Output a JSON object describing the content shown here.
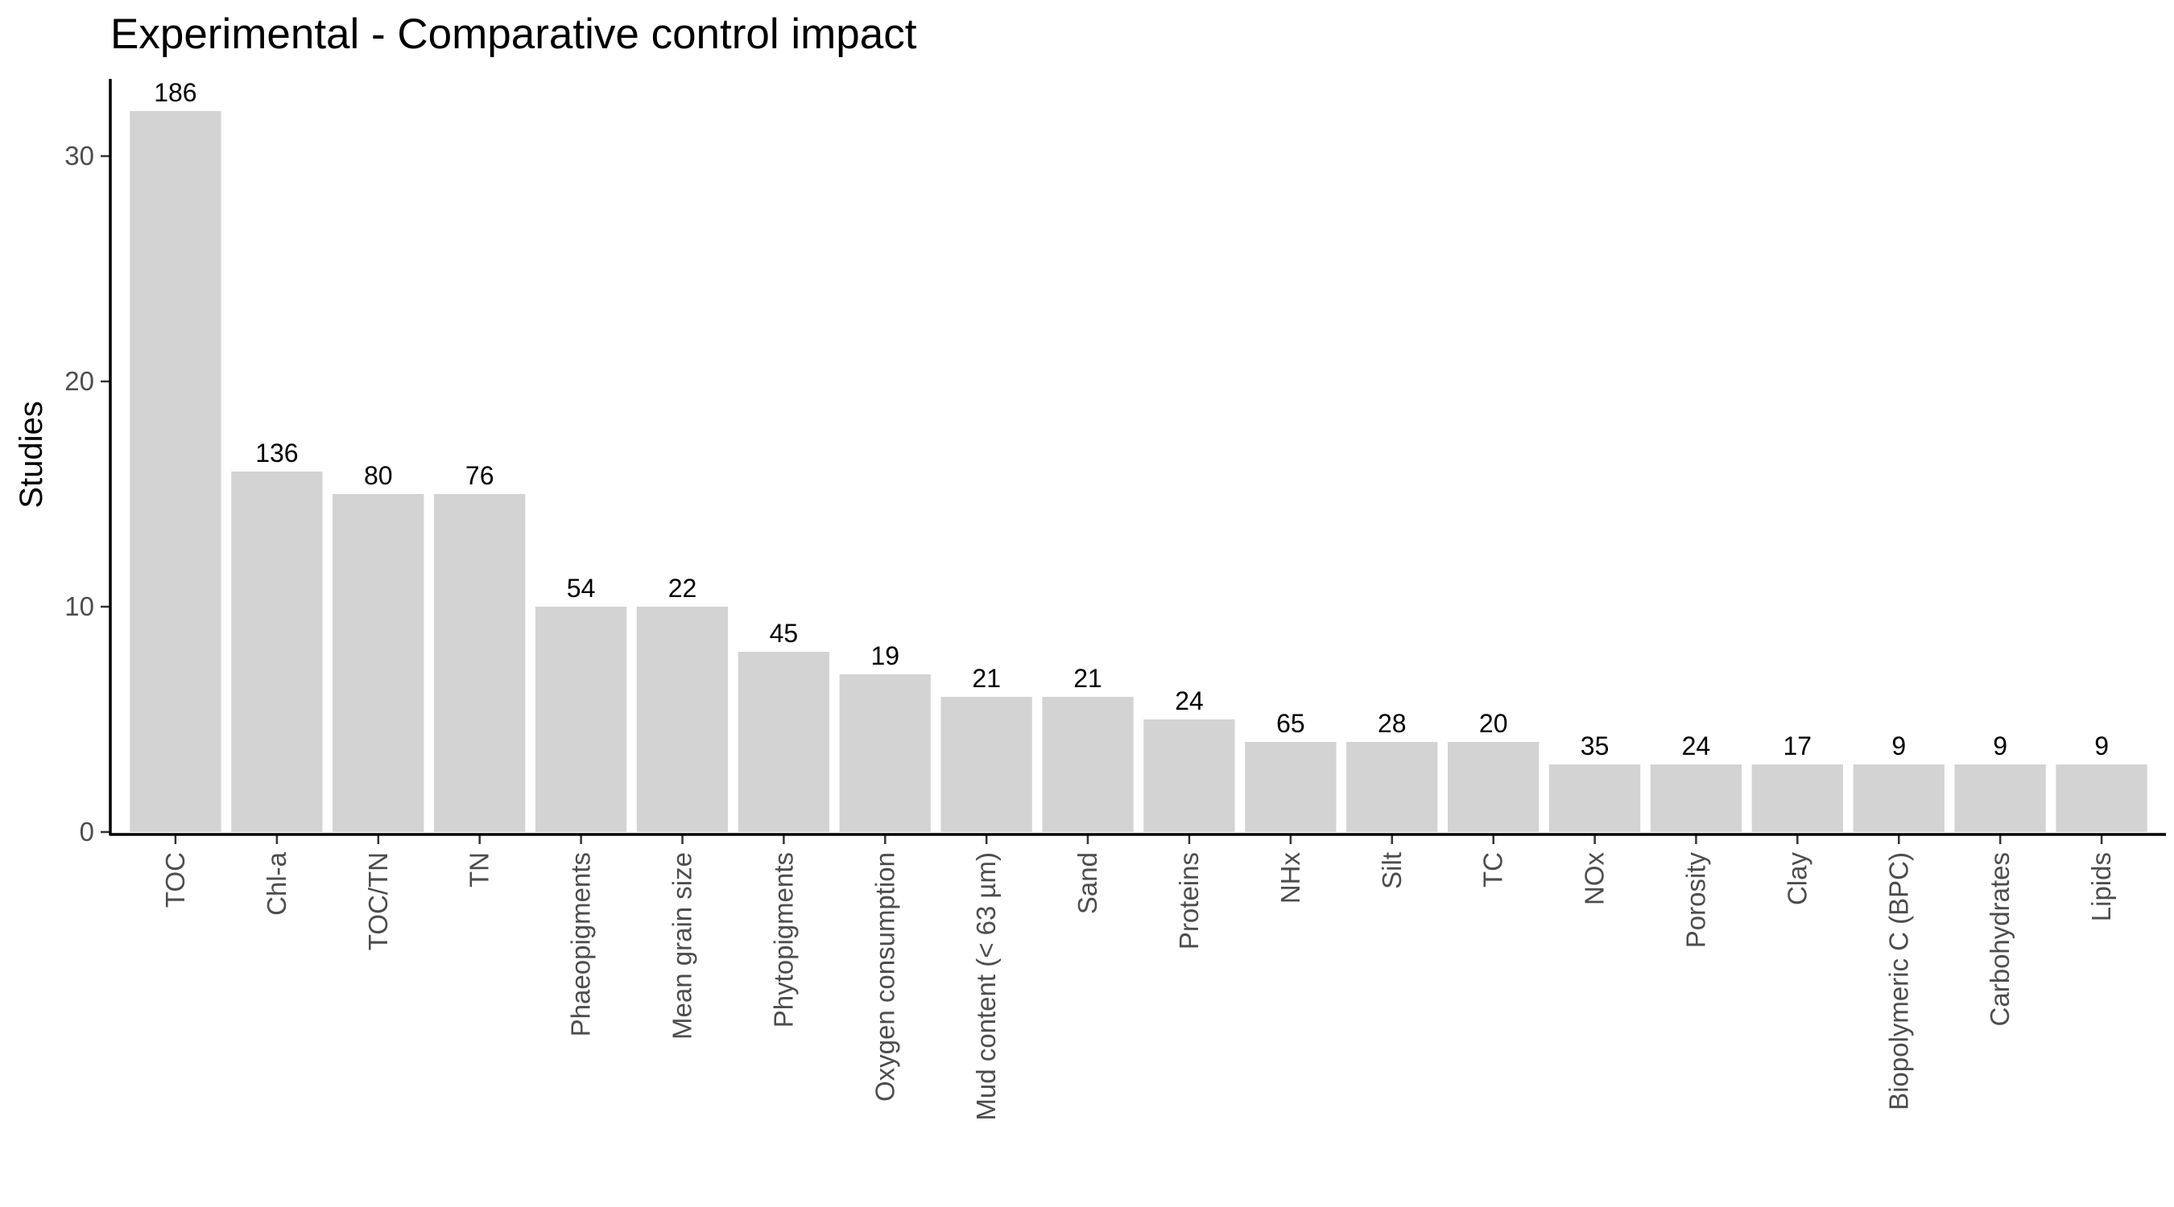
{
  "chart_data": {
    "type": "bar",
    "title": "Experimental - Comparative control impact",
    "xlabel": "",
    "ylabel": "Studies",
    "categories": [
      "TOC",
      "Chl-a",
      "TOC/TN",
      "TN",
      "Phaeopigments",
      "Mean grain size",
      "Phytopigments",
      "Oxygen consumption",
      "Mud content (< 63 µm)",
      "Sand",
      "Proteins",
      "NHx",
      "Silt",
      "TC",
      "NOx",
      "Porosity",
      "Clay",
      "Biopolymeric C (BPC)",
      "Carbohydrates",
      "Lipids"
    ],
    "values": [
      32,
      16,
      15,
      15,
      10,
      10,
      8,
      7,
      6,
      6,
      5,
      4,
      4,
      4,
      3,
      3,
      3,
      3,
      3,
      3
    ],
    "labels": [
      "186",
      "136",
      "80",
      "76",
      "54",
      "22",
      "45",
      "19",
      "21",
      "21",
      "24",
      "65",
      "28",
      "20",
      "35",
      "24",
      "17",
      "9",
      "9",
      "9"
    ],
    "yticks": [
      0,
      10,
      20,
      30
    ],
    "ylim": [
      0,
      33.6
    ],
    "grid": false,
    "legend": "none",
    "bar_color": "#d3d3d3"
  }
}
